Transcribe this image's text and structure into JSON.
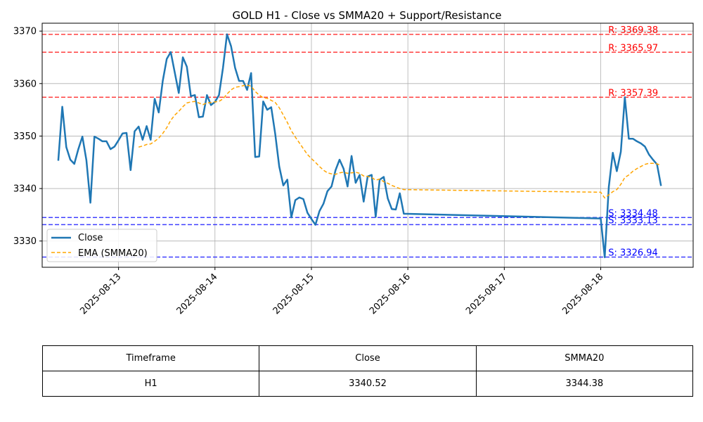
{
  "chart_data": {
    "type": "line",
    "title": "GOLD H1 - Close vs SMMA20 + Support/Resistance",
    "xlabel": "",
    "ylabel": "",
    "xlim": [
      "2025-08-12T05:00",
      "2025-08-18T23:00"
    ],
    "ylim": [
      3325,
      3371.5
    ],
    "x_ticks": [
      "2025-08-13",
      "2025-08-14",
      "2025-08-15",
      "2025-08-16",
      "2025-08-17",
      "2025-08-18"
    ],
    "y_ticks": [
      3330,
      3340,
      3350,
      3360,
      3370
    ],
    "grid": true,
    "legend_position": "lower-left",
    "series": [
      {
        "name": "Close",
        "color": "#1f77b4",
        "style": "solid",
        "x": [
          "2025-08-12T09:00",
          "2025-08-12T10:00",
          "2025-08-12T11:00",
          "2025-08-12T12:00",
          "2025-08-12T13:00",
          "2025-08-12T14:00",
          "2025-08-12T15:00",
          "2025-08-12T16:00",
          "2025-08-12T17:00",
          "2025-08-12T18:00",
          "2025-08-12T19:00",
          "2025-08-12T20:00",
          "2025-08-12T21:00",
          "2025-08-12T22:00",
          "2025-08-12T23:00",
          "2025-08-13T00:00",
          "2025-08-13T01:00",
          "2025-08-13T02:00",
          "2025-08-13T03:00",
          "2025-08-13T04:00",
          "2025-08-13T05:00",
          "2025-08-13T06:00",
          "2025-08-13T07:00",
          "2025-08-13T08:00",
          "2025-08-13T09:00",
          "2025-08-13T10:00",
          "2025-08-13T11:00",
          "2025-08-13T12:00",
          "2025-08-13T13:00",
          "2025-08-13T14:00",
          "2025-08-13T15:00",
          "2025-08-13T16:00",
          "2025-08-13T17:00",
          "2025-08-13T18:00",
          "2025-08-13T19:00",
          "2025-08-13T20:00",
          "2025-08-13T21:00",
          "2025-08-13T22:00",
          "2025-08-13T23:00",
          "2025-08-14T00:00",
          "2025-08-14T01:00",
          "2025-08-14T02:00",
          "2025-08-14T03:00",
          "2025-08-14T04:00",
          "2025-08-14T05:00",
          "2025-08-14T06:00",
          "2025-08-14T07:00",
          "2025-08-14T08:00",
          "2025-08-14T09:00",
          "2025-08-14T10:00",
          "2025-08-14T11:00",
          "2025-08-14T12:00",
          "2025-08-14T13:00",
          "2025-08-14T14:00",
          "2025-08-14T15:00",
          "2025-08-14T16:00",
          "2025-08-14T17:00",
          "2025-08-14T18:00",
          "2025-08-14T19:00",
          "2025-08-14T20:00",
          "2025-08-14T21:00",
          "2025-08-14T22:00",
          "2025-08-14T23:00",
          "2025-08-15T00:00",
          "2025-08-15T01:00",
          "2025-08-15T02:00",
          "2025-08-15T03:00",
          "2025-08-15T04:00",
          "2025-08-15T05:00",
          "2025-08-15T06:00",
          "2025-08-15T07:00",
          "2025-08-15T08:00",
          "2025-08-15T09:00",
          "2025-08-15T10:00",
          "2025-08-15T11:00",
          "2025-08-15T12:00",
          "2025-08-15T13:00",
          "2025-08-15T14:00",
          "2025-08-15T15:00",
          "2025-08-15T16:00",
          "2025-08-15T17:00",
          "2025-08-15T18:00",
          "2025-08-15T19:00",
          "2025-08-15T20:00",
          "2025-08-15T21:00",
          "2025-08-15T22:00",
          "2025-08-15T23:00",
          "2025-08-18T00:00",
          "2025-08-18T01:00",
          "2025-08-18T02:00",
          "2025-08-18T03:00",
          "2025-08-18T04:00",
          "2025-08-18T05:00",
          "2025-08-18T06:00",
          "2025-08-18T07:00",
          "2025-08-18T08:00",
          "2025-08-18T09:00",
          "2025-08-18T10:00",
          "2025-08-18T11:00",
          "2025-08-18T12:00",
          "2025-08-18T13:00",
          "2025-08-18T14:00",
          "2025-08-18T15:00"
        ],
        "values": [
          3345.3,
          3355.6,
          3347.9,
          3345.5,
          3344.7,
          3347.5,
          3349.9,
          3345.4,
          3337.3,
          3349.9,
          3349.5,
          3349.0,
          3349.0,
          3347.5,
          3348.0,
          3349.2,
          3350.5,
          3350.6,
          3343.5,
          3350.9,
          3351.8,
          3349.3,
          3351.9,
          3349.3,
          3357.1,
          3354.5,
          3360.5,
          3364.7,
          3366.0,
          3362.1,
          3358.2,
          3365.0,
          3363.2,
          3357.6,
          3357.8,
          3353.6,
          3353.7,
          3357.8,
          3355.9,
          3356.5,
          3357.8,
          3363.0,
          3369.4,
          3367.1,
          3363.0,
          3360.5,
          3360.5,
          3358.8,
          3362.0,
          3346.0,
          3346.1,
          3356.6,
          3355.0,
          3355.5,
          3350.4,
          3344.2,
          3340.6,
          3341.7,
          3334.5,
          3337.8,
          3338.3,
          3338.0,
          3335.4,
          3334.2,
          3333.1,
          3335.7,
          3337.1,
          3339.5,
          3340.4,
          3343.5,
          3345.5,
          3343.8,
          3340.4,
          3346.2,
          3341.1,
          3342.6,
          3337.5,
          3342.3,
          3342.6,
          3334.6,
          3341.7,
          3342.2,
          3338.1,
          3336.1,
          3336.0,
          3339.1,
          3335.2,
          3334.3,
          3326.9,
          3340.3,
          3346.8,
          3343.3,
          3347.0,
          3357.4,
          3349.5,
          3349.5,
          3349.0,
          3348.6,
          3348.0,
          3346.5,
          3345.5,
          3344.6,
          3340.5
        ]
      },
      {
        "name": "EMA (SMMA20)",
        "color": "#ffa500",
        "style": "dashed",
        "x": [
          "2025-08-13T05:00",
          "2025-08-13T06:00",
          "2025-08-13T07:00",
          "2025-08-13T08:00",
          "2025-08-13T09:00",
          "2025-08-13T10:00",
          "2025-08-13T11:00",
          "2025-08-13T12:00",
          "2025-08-13T13:00",
          "2025-08-13T14:00",
          "2025-08-13T15:00",
          "2025-08-13T16:00",
          "2025-08-13T17:00",
          "2025-08-13T18:00",
          "2025-08-13T19:00",
          "2025-08-13T20:00",
          "2025-08-13T21:00",
          "2025-08-13T22:00",
          "2025-08-13T23:00",
          "2025-08-14T00:00",
          "2025-08-14T01:00",
          "2025-08-14T02:00",
          "2025-08-14T03:00",
          "2025-08-14T04:00",
          "2025-08-14T05:00",
          "2025-08-14T06:00",
          "2025-08-14T07:00",
          "2025-08-14T08:00",
          "2025-08-14T09:00",
          "2025-08-14T10:00",
          "2025-08-14T11:00",
          "2025-08-14T12:00",
          "2025-08-14T13:00",
          "2025-08-14T14:00",
          "2025-08-14T15:00",
          "2025-08-14T16:00",
          "2025-08-14T17:00",
          "2025-08-14T18:00",
          "2025-08-14T19:00",
          "2025-08-14T20:00",
          "2025-08-14T21:00",
          "2025-08-14T22:00",
          "2025-08-14T23:00",
          "2025-08-15T00:00",
          "2025-08-15T01:00",
          "2025-08-15T02:00",
          "2025-08-15T03:00",
          "2025-08-15T04:00",
          "2025-08-15T05:00",
          "2025-08-15T06:00",
          "2025-08-15T07:00",
          "2025-08-15T08:00",
          "2025-08-15T09:00",
          "2025-08-15T10:00",
          "2025-08-15T11:00",
          "2025-08-15T12:00",
          "2025-08-15T13:00",
          "2025-08-15T14:00",
          "2025-08-15T15:00",
          "2025-08-15T16:00",
          "2025-08-15T17:00",
          "2025-08-15T18:00",
          "2025-08-15T19:00",
          "2025-08-15T20:00",
          "2025-08-15T21:00",
          "2025-08-15T22:00",
          "2025-08-15T23:00",
          "2025-08-18T00:00",
          "2025-08-18T01:00",
          "2025-08-18T02:00",
          "2025-08-18T03:00",
          "2025-08-18T04:00",
          "2025-08-18T05:00",
          "2025-08-18T06:00",
          "2025-08-18T07:00",
          "2025-08-18T08:00",
          "2025-08-18T09:00",
          "2025-08-18T10:00",
          "2025-08-18T11:00",
          "2025-08-18T12:00",
          "2025-08-18T13:00",
          "2025-08-18T14:00",
          "2025-08-18T15:00"
        ],
        "values": [
          3347.9,
          3348.1,
          3348.4,
          3348.5,
          3349.0,
          3349.6,
          3350.5,
          3351.6,
          3353.0,
          3354.0,
          3354.7,
          3355.6,
          3356.3,
          3356.5,
          3356.6,
          3356.3,
          3356.0,
          3356.3,
          3356.4,
          3356.5,
          3356.6,
          3357.1,
          3358.0,
          3358.8,
          3359.3,
          3359.4,
          3359.6,
          3359.7,
          3359.5,
          3358.5,
          3357.8,
          3357.3,
          3357.2,
          3356.8,
          3356.4,
          3355.4,
          3354.0,
          3352.6,
          3351.0,
          3349.8,
          3348.7,
          3347.6,
          3346.5,
          3345.7,
          3345.0,
          3344.2,
          3343.5,
          3343.0,
          3342.8,
          3342.7,
          3343.0,
          3343.1,
          3342.9,
          3343.0,
          3343.1,
          3342.9,
          3342.4,
          3342.3,
          3342.1,
          3341.6,
          3341.8,
          3341.3,
          3341.0,
          3340.6,
          3340.3,
          3340.0,
          3339.8,
          3339.3,
          3338.2,
          3338.8,
          3339.4,
          3339.8,
          3340.8,
          3342.1,
          3342.6,
          3343.3,
          3343.8,
          3344.2,
          3344.6,
          3344.8,
          3344.8,
          3344.7,
          3344.4
        ]
      }
    ],
    "levels": [
      {
        "label": "R: 3369.38",
        "value": 3369.38,
        "kind": "resistance",
        "color": "#ff0000"
      },
      {
        "label": "R: 3365.97",
        "value": 3365.97,
        "kind": "resistance",
        "color": "#ff0000"
      },
      {
        "label": "R: 3357.39",
        "value": 3357.39,
        "kind": "resistance",
        "color": "#ff0000"
      },
      {
        "label": "S: 3334.48",
        "value": 3334.48,
        "kind": "support",
        "color": "#0000ff"
      },
      {
        "label": "S: 3333.13",
        "value": 3333.13,
        "kind": "support",
        "color": "#0000ff"
      },
      {
        "label": "S: 3326.94",
        "value": 3326.94,
        "kind": "support",
        "color": "#0000ff"
      }
    ]
  },
  "table": {
    "headers": [
      "Timeframe",
      "Close",
      "SMMA20"
    ],
    "row": [
      "H1",
      "3340.52",
      "3344.38"
    ]
  }
}
